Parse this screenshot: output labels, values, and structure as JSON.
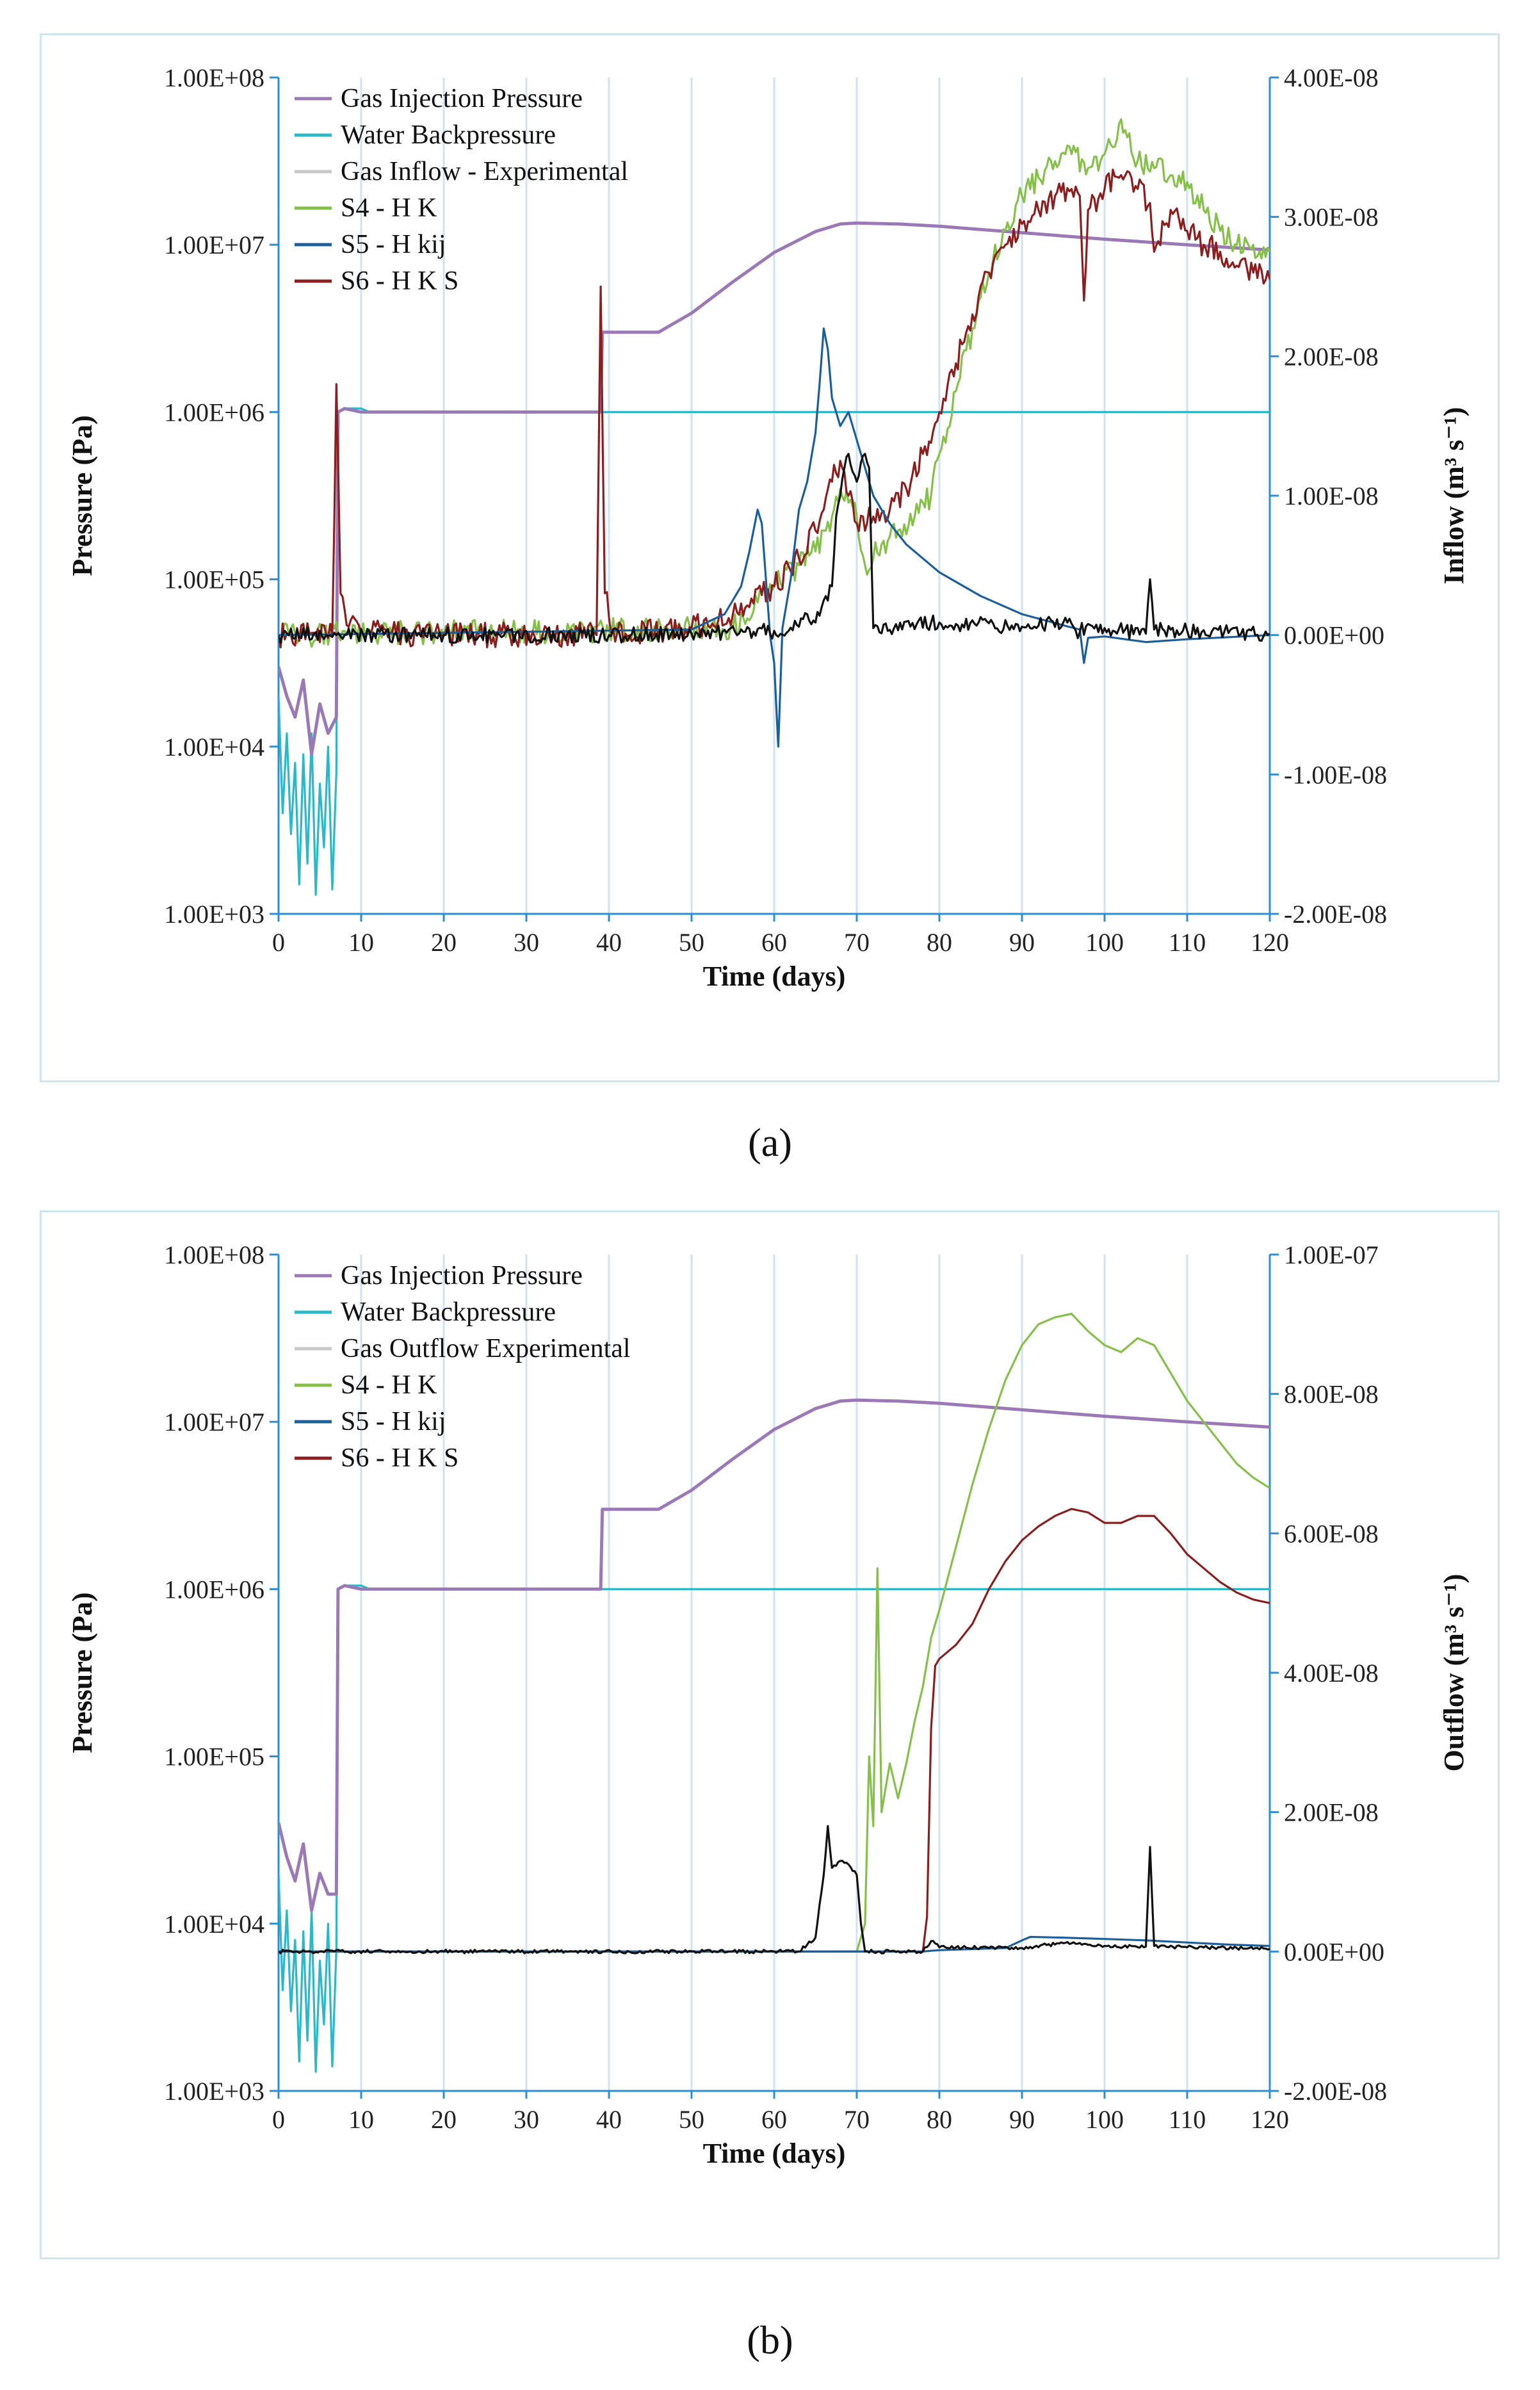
{
  "colors": {
    "gas_injection": "#9b78b6",
    "water_backpressure": "#2bb8c8",
    "experimental": "#111111",
    "experimental_legend": "#c8c8c8",
    "s4": "#86c04a",
    "s5": "#1d5f9a",
    "s6": "#8b1f1f",
    "grid": "#cfe3f3",
    "axis": "#2b8fd6"
  },
  "chart_data": [
    {
      "panel_caption": "a",
      "type": "line",
      "xlabel": "Time (days)",
      "ylabel_left": "Pressure (Pa)",
      "ylabel_right": "Inflow (m³ s⁻¹)",
      "xlim": [
        0,
        120
      ],
      "x_ticks": [
        "0",
        "10",
        "20",
        "30",
        "40",
        "50",
        "60",
        "70",
        "80",
        "90",
        "100",
        "110",
        "120"
      ],
      "ylim_left_log10": [
        3,
        8
      ],
      "y_ticks_left": [
        "1.00E+08",
        "1.00E+07",
        "1.00E+06",
        "1.00E+05",
        "1.00E+04",
        "1.00E+03"
      ],
      "ylim_right": [
        -2e-08,
        4e-08
      ],
      "y_ticks_right": [
        "4.00E-08",
        "3.00E-08",
        "2.00E-08",
        "1.00E-08",
        "0.00E+00",
        "-1.00E-08",
        "-2.00E-08"
      ],
      "legend": [
        "Gas Injection Pressure",
        "Water Backpressure",
        "Gas Inflow - Experimental",
        "S4 - H K",
        "S5 - H kij",
        "S6 - H K S"
      ],
      "series": [
        {
          "name": "Gas Injection Pressure",
          "axis": "left",
          "x": [
            0,
            1,
            2,
            3,
            4,
            5,
            6,
            7,
            7.2,
            8,
            10,
            39,
            39.2,
            40,
            46,
            50,
            55,
            60,
            65,
            68,
            70,
            75,
            80,
            90,
            100,
            110,
            120
          ],
          "y": [
            30000,
            20000,
            15000,
            25000,
            9000,
            18000,
            12000,
            15000,
            1000000,
            1050000,
            1000000,
            1000000,
            3000000,
            3000000,
            3000000,
            3900000,
            6000000,
            9000000,
            12000000,
            13300000,
            13500000,
            13300000,
            12900000,
            11800000,
            10800000,
            10000000,
            9300000
          ]
        },
        {
          "name": "Water Backpressure",
          "axis": "left",
          "x": [
            0,
            0.5,
            1,
            1.5,
            2,
            2.5,
            3,
            3.5,
            4,
            4.5,
            5,
            5.5,
            6,
            6.5,
            7,
            7.2,
            8,
            10,
            11,
            120
          ],
          "y": [
            20000,
            4000,
            12000,
            3000,
            8000,
            1500,
            9000,
            2000,
            12000,
            1300,
            6000,
            2500,
            10000,
            1400,
            7000,
            1000000,
            1050000,
            1050000,
            1000000,
            1000000
          ]
        },
        {
          "name": "Gas Inflow - Experimental",
          "axis": "right",
          "x": [
            0,
            7,
            8,
            20,
            39,
            40,
            50,
            60,
            63,
            64,
            65,
            66,
            67,
            67.5,
            68,
            69,
            70,
            71,
            71.5,
            72,
            80,
            90,
            95,
            97,
            98,
            100,
            105,
            105.5,
            106,
            110,
            120
          ],
          "y": [
            0,
            0,
            0,
            0,
            0,
            0,
            1e-10,
            3e-10,
            6e-10,
            1.5e-09,
            9e-10,
            2.5e-09,
            3.5e-09,
            8.5e-09,
            1e-08,
            1.3e-08,
            1.1e-08,
            1.3e-08,
            1.2e-08,
            5e-10,
            9e-10,
            6e-10,
            9e-10,
            2e-10,
            8e-10,
            5e-10,
            1e-10,
            4e-09,
            4e-10,
            3e-10,
            1e-10
          ]
        },
        {
          "name": "S4 - H K",
          "axis": "right",
          "x": [
            0,
            55,
            60,
            63,
            65,
            66,
            67,
            68,
            69,
            70,
            71,
            73,
            75,
            77,
            79,
            80,
            82,
            84,
            86,
            88,
            90,
            92,
            94,
            96,
            98,
            100,
            101,
            102,
            104,
            106,
            108,
            110,
            112,
            114,
            116,
            118,
            120
          ],
          "y": [
            0,
            5e-10,
            3.5e-09,
            5e-09,
            6e-09,
            7.5e-09,
            8.5e-09,
            1.05e-08,
            9.5e-09,
            8.5e-09,
            5e-09,
            6.5e-09,
            7.5e-09,
            8.5e-09,
            1e-08,
            1.3e-08,
            1.75e-08,
            2.2e-08,
            2.6e-08,
            2.9e-08,
            3.15e-08,
            3.28e-08,
            3.4e-08,
            3.45e-08,
            3.35e-08,
            3.45e-08,
            3.5e-08,
            3.7e-08,
            3.4e-08,
            3.35e-08,
            3.3e-08,
            3.25e-08,
            3.05e-08,
            2.9e-08,
            2.8e-08,
            2.8e-08,
            2.75e-08
          ]
        },
        {
          "name": "S5 - H kij",
          "axis": "right",
          "x": [
            0,
            50,
            54,
            56,
            57,
            58,
            58.5,
            59.5,
            60,
            60.5,
            61,
            62,
            63,
            64,
            65,
            65.5,
            66,
            66.5,
            67,
            68,
            69,
            70,
            72,
            74,
            76,
            80,
            85,
            90,
            95,
            97,
            97.5,
            98,
            100,
            105,
            110,
            120
          ],
          "y": [
            0,
            4e-10,
            1.5e-09,
            3.5e-09,
            6e-09,
            9e-09,
            8e-09,
            0,
            -2e-09,
            -8e-09,
            5e-10,
            4e-09,
            9e-09,
            1.1e-08,
            1.45e-08,
            1.8e-08,
            2.2e-08,
            2.05e-08,
            1.7e-08,
            1.5e-08,
            1.6e-08,
            1.4e-08,
            1e-08,
            8e-09,
            6.5e-09,
            4.5e-09,
            2.8e-09,
            1.5e-09,
            7e-10,
            4e-10,
            -2e-09,
            -2e-10,
            -1e-10,
            -5e-10,
            -3e-10,
            0
          ]
        },
        {
          "name": "S6 - H K S",
          "axis": "right",
          "x": [
            0,
            6.5,
            7,
            7.5,
            8.5,
            10,
            20,
            38.5,
            39,
            39.5,
            40.5,
            42,
            50,
            55,
            60,
            63,
            65,
            66,
            67,
            68,
            69,
            70,
            72,
            74,
            76,
            78,
            80,
            82,
            84,
            86,
            88,
            90,
            92,
            94,
            96,
            97,
            97.5,
            98,
            100,
            102,
            104,
            105.5,
            106,
            108,
            110,
            112,
            114,
            116,
            118,
            120
          ],
          "y": [
            0,
            0,
            1.8e-08,
            3e-09,
            6e-10,
            2e-10,
            0,
            0,
            2.5e-08,
            3e-09,
            4e-10,
            1e-10,
            5e-10,
            1.5e-09,
            3.5e-09,
            5.5e-09,
            7.5e-09,
            9e-09,
            1.1e-08,
            1.25e-08,
            1e-08,
            8e-09,
            8.5e-09,
            9e-09,
            1.05e-08,
            1.3e-08,
            1.6e-08,
            1.95e-08,
            2.3e-08,
            2.6e-08,
            2.8e-08,
            2.95e-08,
            3.05e-08,
            3.15e-08,
            3.2e-08,
            3.15e-08,
            2.4e-08,
            3.05e-08,
            3.2e-08,
            3.3e-08,
            3.2e-08,
            3.1e-08,
            2.75e-08,
            3.05e-08,
            2.9e-08,
            2.8e-08,
            2.75e-08,
            2.65e-08,
            2.6e-08,
            2.55e-08
          ]
        }
      ]
    },
    {
      "panel_caption": "b",
      "type": "line",
      "xlabel": "Time (days)",
      "ylabel_left": "Pressure (Pa)",
      "ylabel_right": "Outflow (m³ s⁻¹)",
      "xlim": [
        0,
        120
      ],
      "x_ticks": [
        "0",
        "10",
        "20",
        "30",
        "40",
        "50",
        "60",
        "70",
        "80",
        "90",
        "100",
        "110",
        "120"
      ],
      "ylim_left_log10": [
        3,
        8
      ],
      "y_ticks_left": [
        "1.00E+08",
        "1.00E+07",
        "1.00E+06",
        "1.00E+05",
        "1.00E+04",
        "1.00E+03"
      ],
      "ylim_right": [
        -2e-08,
        1e-07
      ],
      "y_ticks_right": [
        "1.00E-07",
        "8.00E-08",
        "6.00E-08",
        "4.00E-08",
        "2.00E-08",
        "0.00E+00",
        "-2.00E-08"
      ],
      "legend": [
        "Gas Injection Pressure",
        "Water Backpressure",
        "Gas Outflow Experimental",
        "S4 - H K",
        "S5 - H kij",
        "S6 - H K S"
      ],
      "series": [
        {
          "name": "Gas Injection Pressure",
          "axis": "left",
          "x": [
            0,
            1,
            2,
            3,
            4,
            5,
            6,
            7,
            7.2,
            8,
            10,
            39,
            39.2,
            40,
            46,
            50,
            55,
            60,
            65,
            68,
            70,
            75,
            80,
            90,
            100,
            110,
            120
          ],
          "y": [
            40000,
            25000,
            18000,
            30000,
            12000,
            20000,
            15000,
            15000,
            1000000,
            1050000,
            1000000,
            1000000,
            3000000,
            3000000,
            3000000,
            3900000,
            6000000,
            9000000,
            12000000,
            13300000,
            13500000,
            13300000,
            12900000,
            11800000,
            10800000,
            10000000,
            9300000
          ]
        },
        {
          "name": "Water Backpressure",
          "axis": "left",
          "x": [
            0,
            0.5,
            1,
            1.5,
            2,
            2.5,
            3,
            3.5,
            4,
            4.5,
            5,
            5.5,
            6,
            6.5,
            7,
            7.2,
            8,
            10,
            11,
            120
          ],
          "y": [
            20000,
            4000,
            12000,
            3000,
            8000,
            1500,
            9000,
            2000,
            12000,
            1300,
            6000,
            2500,
            10000,
            1400,
            7000,
            1000000,
            1050000,
            1050000,
            1000000,
            1000000
          ]
        },
        {
          "name": "Gas Outflow Experimental",
          "axis": "right",
          "x": [
            0,
            63,
            64,
            65,
            66,
            66.5,
            67,
            68,
            69,
            70,
            70.5,
            71,
            78,
            79,
            80,
            90,
            95,
            100,
            105,
            105.5,
            106,
            110,
            120
          ],
          "y": [
            0,
            0,
            1e-09,
            2e-09,
            1.1e-08,
            1.8e-08,
            1.2e-08,
            1.3e-08,
            1.25e-08,
            1.1e-08,
            4e-09,
            0,
            0,
            1.5e-09,
            6e-10,
            5e-10,
            1.2e-09,
            8e-10,
            7e-10,
            1.5e-08,
            8e-10,
            6e-10,
            4e-10
          ]
        },
        {
          "name": "S4 - H K",
          "axis": "right",
          "x": [
            0,
            70,
            71,
            71.5,
            72,
            72.5,
            73,
            74,
            75,
            76,
            77,
            78,
            79,
            80,
            82,
            84,
            86,
            88,
            90,
            92,
            94,
            96,
            98,
            100,
            102,
            104,
            106,
            108,
            110,
            112,
            114,
            116,
            118,
            120
          ],
          "y": [
            0,
            0,
            4e-09,
            2.8e-08,
            1.8e-08,
            5.5e-08,
            2e-08,
            2.7e-08,
            2.2e-08,
            2.7e-08,
            3.3e-08,
            3.8e-08,
            4.5e-08,
            4.9e-08,
            5.8e-08,
            6.7e-08,
            7.5e-08,
            8.2e-08,
            8.7e-08,
            9e-08,
            9.1e-08,
            9.15e-08,
            8.9e-08,
            8.7e-08,
            8.6e-08,
            8.8e-08,
            8.7e-08,
            8.3e-08,
            7.9e-08,
            7.6e-08,
            7.3e-08,
            7e-08,
            6.8e-08,
            6.65e-08
          ]
        },
        {
          "name": "S5 - H kij",
          "axis": "right",
          "x": [
            0,
            78,
            79,
            80,
            85,
            88,
            90,
            91,
            95,
            100,
            105,
            110,
            115,
            120
          ],
          "y": [
            0,
            0,
            1e-10,
            2e-10,
            4e-10,
            5e-10,
            1.6e-09,
            2.1e-09,
            2e-09,
            1.8e-09,
            1.6e-09,
            1.3e-09,
            1e-09,
            8e-10
          ]
        },
        {
          "name": "S6 - H K S",
          "axis": "right",
          "x": [
            0,
            78,
            78.5,
            79,
            79.5,
            80,
            82,
            84,
            86,
            88,
            90,
            92,
            94,
            96,
            98,
            100,
            102,
            104,
            106,
            108,
            110,
            112,
            114,
            116,
            118,
            120
          ],
          "y": [
            0,
            0,
            5e-09,
            3.2e-08,
            4.1e-08,
            4.2e-08,
            4.4e-08,
            4.7e-08,
            5.2e-08,
            5.6e-08,
            5.9e-08,
            6.1e-08,
            6.25e-08,
            6.35e-08,
            6.3e-08,
            6.15e-08,
            6.15e-08,
            6.25e-08,
            6.25e-08,
            6e-08,
            5.7e-08,
            5.5e-08,
            5.3e-08,
            5.15e-08,
            5.05e-08,
            5e-08
          ]
        }
      ]
    }
  ],
  "captions": [
    "(a)",
    "(b)"
  ]
}
